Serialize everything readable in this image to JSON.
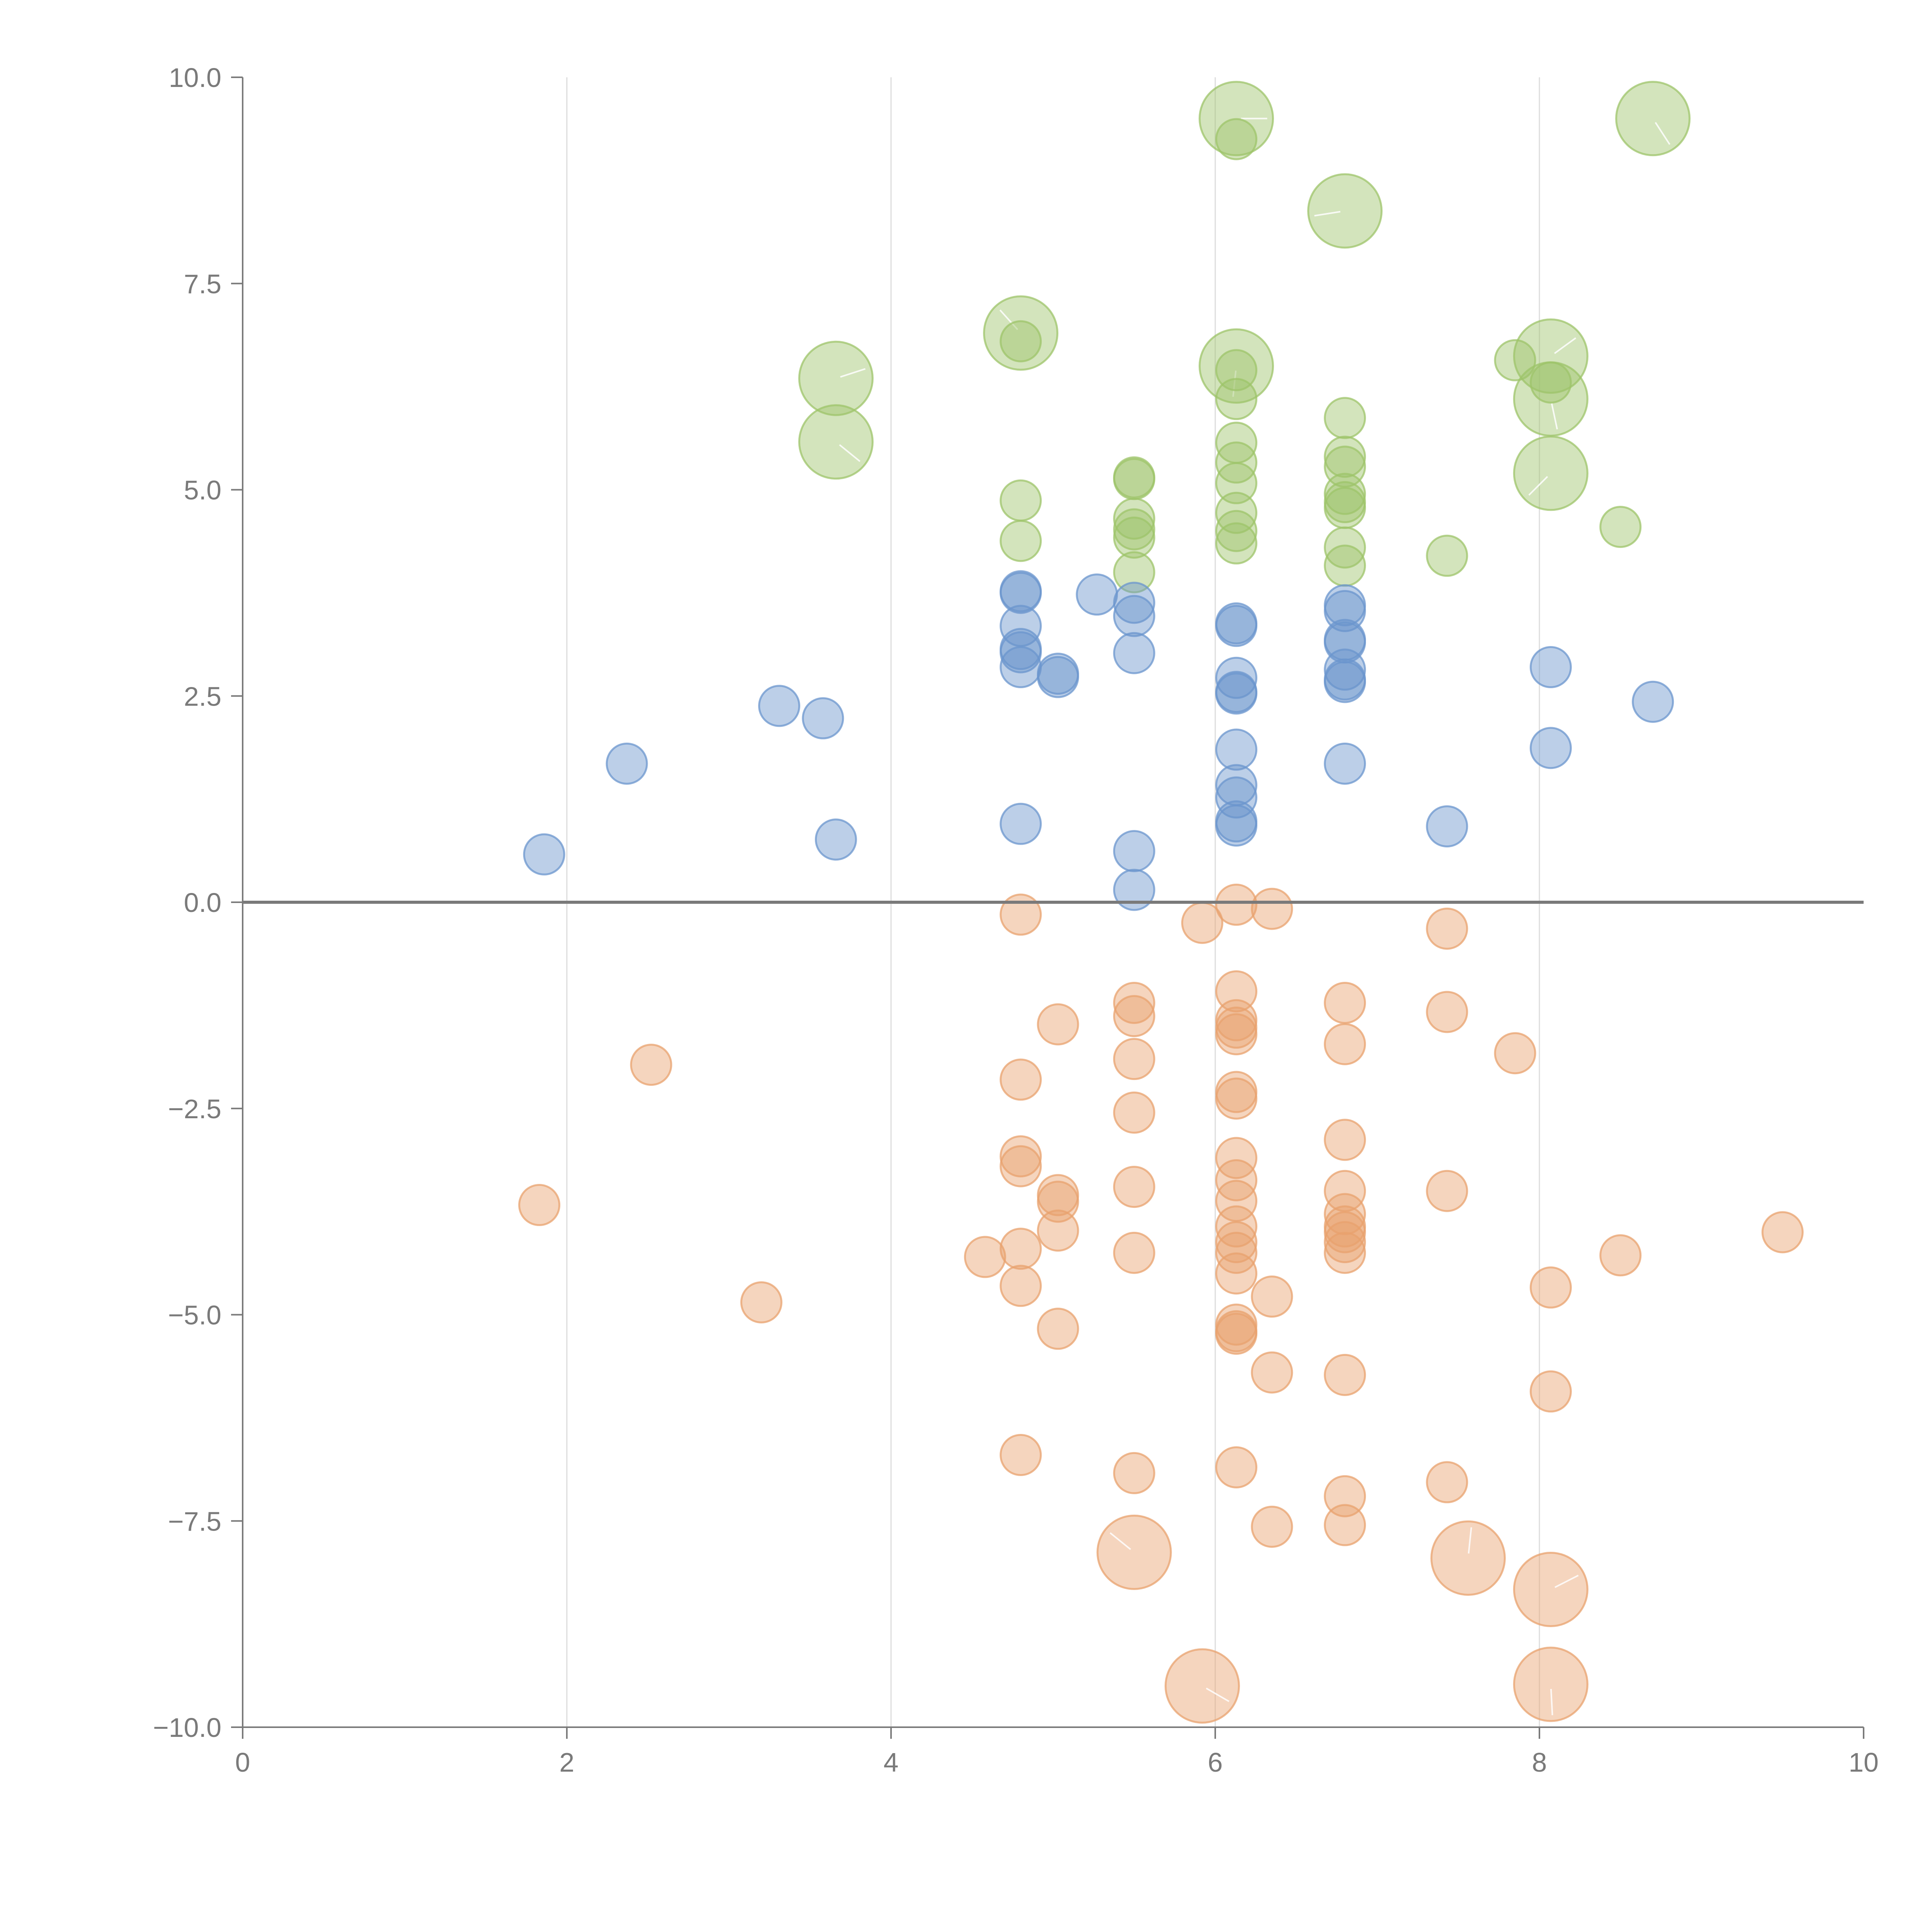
{
  "chart_data": {
    "type": "scatter",
    "title": "",
    "xlabel": "",
    "ylabel": "",
    "xlim": [
      0,
      10
    ],
    "ylim": [
      -10,
      10
    ],
    "x_ticks": [
      "0",
      "2",
      "4",
      "6",
      "8",
      "10"
    ],
    "y_ticks": [
      "10.0",
      "7.5",
      "5.0",
      "2.5",
      "0.0",
      "−2.5",
      "−5.0",
      "−7.5",
      "−10.0"
    ],
    "vertical_grid_at": [
      2,
      4,
      6,
      8
    ],
    "zero_line": 0,
    "series": [
      {
        "name": "green",
        "color": "#9dc46a",
        "points": [
          [
            6.13,
            9.5,
            2
          ],
          [
            8.7,
            9.5,
            2
          ],
          [
            6.13,
            9.25,
            1
          ],
          [
            6.8,
            8.38,
            2
          ],
          [
            4.8,
            6.9,
            2
          ],
          [
            4.8,
            6.8,
            1
          ],
          [
            3.66,
            6.35,
            2
          ],
          [
            3.66,
            5.58,
            2
          ],
          [
            6.13,
            6.5,
            2
          ],
          [
            6.13,
            6.45,
            1
          ],
          [
            6.13,
            6.1,
            1
          ],
          [
            7.85,
            6.57,
            1
          ],
          [
            8.07,
            6.62,
            2
          ],
          [
            8.07,
            6.3,
            1
          ],
          [
            8.07,
            6.1,
            2
          ],
          [
            8.07,
            5.2,
            2
          ],
          [
            6.8,
            5.87,
            1
          ],
          [
            6.13,
            5.57,
            1
          ],
          [
            6.8,
            5.4,
            1
          ],
          [
            6.13,
            5.33,
            1
          ],
          [
            6.8,
            5.28,
            1
          ],
          [
            5.5,
            5.15,
            1
          ],
          [
            5.5,
            5.13,
            1
          ],
          [
            6.13,
            5.08,
            1
          ],
          [
            6.8,
            4.95,
            1
          ],
          [
            4.8,
            4.87,
            1
          ],
          [
            6.8,
            4.85,
            1
          ],
          [
            6.8,
            4.78,
            1
          ],
          [
            6.13,
            4.72,
            1
          ],
          [
            5.5,
            4.65,
            1
          ],
          [
            8.5,
            4.55,
            1
          ],
          [
            6.13,
            4.5,
            1
          ],
          [
            5.5,
            4.52,
            1
          ],
          [
            5.5,
            4.42,
            1
          ],
          [
            4.8,
            4.38,
            1
          ],
          [
            6.13,
            4.35,
            1
          ],
          [
            6.8,
            4.3,
            1
          ],
          [
            7.43,
            4.2,
            1
          ],
          [
            6.8,
            4.08,
            1
          ],
          [
            5.5,
            4.0,
            1
          ]
        ]
      },
      {
        "name": "blue",
        "color": "#6b95cd",
        "points": [
          [
            4.8,
            3.77,
            1
          ],
          [
            4.8,
            3.75,
            1
          ],
          [
            5.27,
            3.73,
            1
          ],
          [
            5.5,
            3.63,
            1
          ],
          [
            6.8,
            3.6,
            1
          ],
          [
            6.8,
            3.53,
            1
          ],
          [
            5.5,
            3.47,
            1
          ],
          [
            6.13,
            3.38,
            1
          ],
          [
            6.13,
            3.35,
            1
          ],
          [
            4.8,
            3.35,
            1
          ],
          [
            6.8,
            3.18,
            1
          ],
          [
            6.8,
            3.15,
            1
          ],
          [
            4.8,
            3.07,
            1
          ],
          [
            4.8,
            3.03,
            1
          ],
          [
            5.5,
            3.02,
            1
          ],
          [
            8.07,
            2.85,
            1
          ],
          [
            4.8,
            2.85,
            1
          ],
          [
            6.8,
            2.82,
            1
          ],
          [
            5.03,
            2.77,
            1
          ],
          [
            5.03,
            2.73,
            1
          ],
          [
            6.13,
            2.72,
            1
          ],
          [
            6.8,
            2.7,
            1
          ],
          [
            6.8,
            2.67,
            1
          ],
          [
            6.13,
            2.55,
            1
          ],
          [
            6.13,
            2.53,
            1
          ],
          [
            8.7,
            2.43,
            1
          ],
          [
            3.31,
            2.38,
            1
          ],
          [
            3.58,
            2.23,
            1
          ],
          [
            8.07,
            1.87,
            1
          ],
          [
            6.13,
            1.85,
            1
          ],
          [
            2.37,
            1.68,
            1
          ],
          [
            6.8,
            1.68,
            1
          ],
          [
            6.13,
            1.42,
            1
          ],
          [
            6.13,
            1.27,
            1
          ],
          [
            6.13,
            0.98,
            1
          ],
          [
            4.8,
            0.95,
            1
          ],
          [
            6.13,
            0.93,
            1
          ],
          [
            7.43,
            0.92,
            1
          ],
          [
            3.66,
            0.76,
            1
          ],
          [
            5.5,
            0.62,
            1
          ],
          [
            1.86,
            0.58,
            1
          ],
          [
            5.5,
            0.15,
            1
          ]
        ]
      },
      {
        "name": "orange",
        "color": "#e8a26e",
        "points": [
          [
            6.13,
            -0.03,
            1
          ],
          [
            6.35,
            -0.08,
            1
          ],
          [
            4.8,
            -0.15,
            1
          ],
          [
            5.92,
            -0.25,
            1
          ],
          [
            7.43,
            -0.32,
            1
          ],
          [
            6.13,
            -1.08,
            1
          ],
          [
            5.5,
            -1.22,
            1
          ],
          [
            6.8,
            -1.22,
            1
          ],
          [
            7.43,
            -1.33,
            1
          ],
          [
            5.5,
            -1.38,
            1
          ],
          [
            6.13,
            -1.43,
            1
          ],
          [
            5.03,
            -1.48,
            1
          ],
          [
            6.13,
            -1.52,
            1
          ],
          [
            6.13,
            -1.6,
            1
          ],
          [
            6.8,
            -1.72,
            1
          ],
          [
            7.85,
            -1.83,
            1
          ],
          [
            5.5,
            -1.9,
            1
          ],
          [
            2.52,
            -1.97,
            1
          ],
          [
            4.8,
            -2.15,
            1
          ],
          [
            6.13,
            -2.3,
            1
          ],
          [
            6.13,
            -2.38,
            1
          ],
          [
            5.5,
            -2.55,
            1
          ],
          [
            6.8,
            -2.88,
            1
          ],
          [
            4.8,
            -3.08,
            1
          ],
          [
            6.13,
            -3.1,
            1
          ],
          [
            4.8,
            -3.2,
            1
          ],
          [
            6.13,
            -3.37,
            1
          ],
          [
            5.5,
            -3.45,
            1
          ],
          [
            6.8,
            -3.5,
            1
          ],
          [
            7.43,
            -3.5,
            1
          ],
          [
            5.03,
            -3.55,
            1
          ],
          [
            5.03,
            -3.63,
            1
          ],
          [
            1.83,
            -3.67,
            1
          ],
          [
            6.13,
            -3.62,
            1
          ],
          [
            6.8,
            -3.78,
            1
          ],
          [
            6.13,
            -3.93,
            1
          ],
          [
            6.8,
            -3.93,
            1
          ],
          [
            6.8,
            -4.0,
            1
          ],
          [
            5.03,
            -3.98,
            1
          ],
          [
            9.5,
            -4.0,
            1
          ],
          [
            6.13,
            -4.12,
            1
          ],
          [
            6.8,
            -4.12,
            1
          ],
          [
            4.8,
            -4.2,
            1
          ],
          [
            6.13,
            -4.25,
            1
          ],
          [
            5.5,
            -4.25,
            1
          ],
          [
            6.8,
            -4.25,
            1
          ],
          [
            8.5,
            -4.28,
            1
          ],
          [
            4.58,
            -4.3,
            1
          ],
          [
            6.13,
            -4.5,
            1
          ],
          [
            4.8,
            -4.65,
            1
          ],
          [
            8.07,
            -4.67,
            1
          ],
          [
            6.35,
            -4.78,
            1
          ],
          [
            3.2,
            -4.85,
            1
          ],
          [
            6.13,
            -5.12,
            1
          ],
          [
            5.03,
            -5.17,
            1
          ],
          [
            6.13,
            -5.2,
            1
          ],
          [
            6.13,
            -5.23,
            1
          ],
          [
            6.35,
            -5.7,
            1
          ],
          [
            6.8,
            -5.73,
            1
          ],
          [
            8.07,
            -5.93,
            1
          ],
          [
            4.8,
            -6.7,
            1
          ],
          [
            6.13,
            -6.85,
            1
          ],
          [
            5.5,
            -6.92,
            1
          ],
          [
            7.43,
            -7.03,
            1
          ],
          [
            6.8,
            -7.2,
            1
          ],
          [
            6.35,
            -7.57,
            1
          ],
          [
            6.8,
            -7.55,
            1
          ],
          [
            5.5,
            -7.88,
            2
          ],
          [
            7.56,
            -7.95,
            2
          ],
          [
            8.07,
            -8.33,
            2
          ],
          [
            5.92,
            -9.5,
            2
          ],
          [
            8.07,
            -9.48,
            2
          ]
        ]
      }
    ]
  }
}
